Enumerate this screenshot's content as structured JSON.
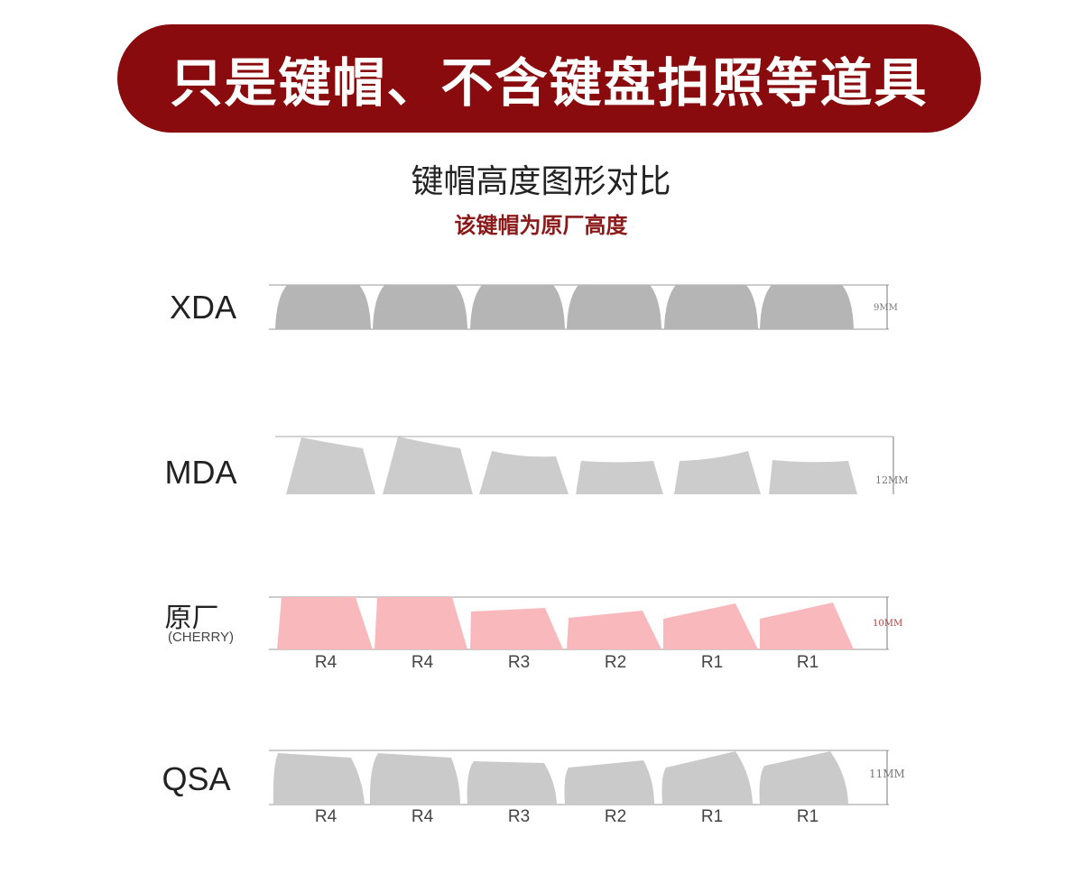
{
  "banner": {
    "text": "只是键帽、不含键盘拍照等道具",
    "color": "#8a0b0d"
  },
  "title": "键帽高度图形对比",
  "subtitle": "该键帽为原厂高度",
  "profiles": [
    {
      "name": "XDA",
      "height": "9MM",
      "color": "#b5b5b5"
    },
    {
      "name": "MDA",
      "height": "12MM",
      "color": "#cccccc"
    },
    {
      "name": "原厂",
      "subname": "(CHERRY)",
      "height": "10MM",
      "color": "#f9b8bc",
      "rows": [
        "R4",
        "R4",
        "R3",
        "R2",
        "R1",
        "R1"
      ]
    },
    {
      "name": "QSA",
      "height": "11MM",
      "color": "#cacaca",
      "rows": [
        "R4",
        "R4",
        "R3",
        "R2",
        "R1",
        "R1"
      ]
    }
  ]
}
